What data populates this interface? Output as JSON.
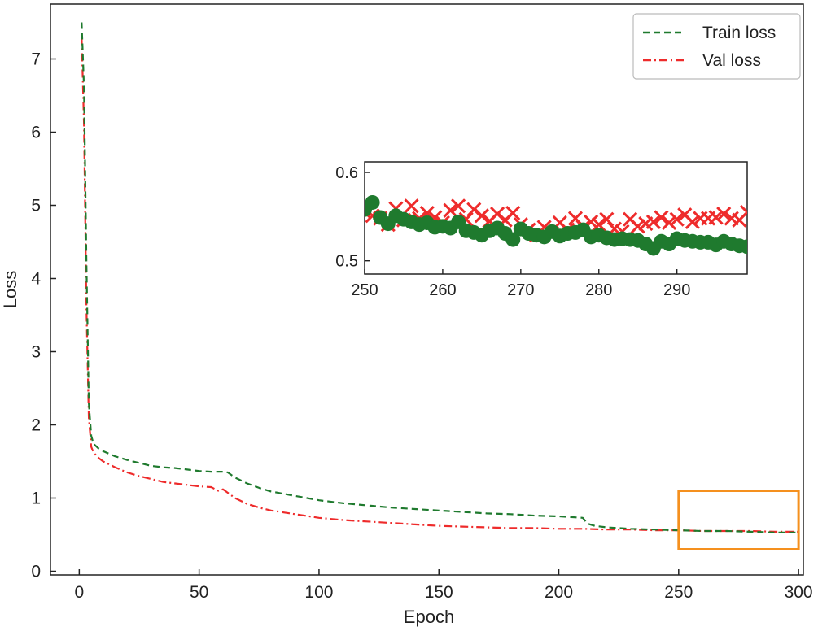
{
  "chart_data": {
    "type": "line",
    "title": "",
    "xlabel": "Epoch",
    "ylabel": "Loss",
    "xlim": [
      -12,
      302
    ],
    "ylim": [
      -0.05,
      7.75
    ],
    "xticks": [
      0,
      50,
      100,
      150,
      200,
      250,
      300
    ],
    "yticks": [
      0,
      1,
      2,
      3,
      4,
      5,
      6,
      7
    ],
    "grid": false,
    "legend_position": "top-right",
    "colors": {
      "train": "#1f7a2e",
      "val": "#ee2b2b",
      "highlight": "#f5901e",
      "axis": "#222222"
    },
    "series": [
      {
        "name": "Train loss",
        "style": "dashed",
        "x": [
          1,
          2,
          3,
          4,
          5,
          6,
          8,
          10,
          15,
          20,
          25,
          30,
          35,
          40,
          45,
          50,
          55,
          60,
          62,
          65,
          70,
          75,
          80,
          90,
          100,
          110,
          120,
          130,
          140,
          150,
          160,
          170,
          180,
          190,
          200,
          205,
          210,
          212,
          215,
          220,
          230,
          240,
          250,
          260,
          270,
          280,
          290,
          300
        ],
        "values": [
          7.5,
          6.6,
          4.2,
          2.3,
          1.85,
          1.74,
          1.68,
          1.64,
          1.57,
          1.52,
          1.48,
          1.44,
          1.42,
          1.41,
          1.39,
          1.37,
          1.36,
          1.36,
          1.35,
          1.28,
          1.2,
          1.14,
          1.09,
          1.03,
          0.97,
          0.93,
          0.9,
          0.87,
          0.85,
          0.83,
          0.81,
          0.79,
          0.78,
          0.76,
          0.75,
          0.74,
          0.73,
          0.65,
          0.62,
          0.6,
          0.58,
          0.57,
          0.56,
          0.55,
          0.55,
          0.54,
          0.53,
          0.53
        ]
      },
      {
        "name": "Val loss",
        "style": "dashdot",
        "x": [
          1,
          2,
          3,
          4,
          5,
          6,
          8,
          10,
          15,
          20,
          25,
          30,
          35,
          40,
          45,
          50,
          55,
          58,
          60,
          65,
          70,
          75,
          80,
          90,
          100,
          110,
          120,
          130,
          140,
          150,
          160,
          170,
          180,
          190,
          200,
          210,
          220,
          230,
          240,
          250,
          260,
          270,
          280,
          290,
          300
        ],
        "values": [
          7.3,
          6.1,
          3.6,
          2.1,
          1.7,
          1.62,
          1.55,
          1.5,
          1.42,
          1.35,
          1.3,
          1.26,
          1.22,
          1.2,
          1.18,
          1.16,
          1.15,
          1.1,
          1.12,
          1.0,
          0.92,
          0.87,
          0.83,
          0.78,
          0.73,
          0.7,
          0.68,
          0.66,
          0.64,
          0.62,
          0.61,
          0.6,
          0.59,
          0.59,
          0.58,
          0.58,
          0.57,
          0.57,
          0.56,
          0.56,
          0.55,
          0.55,
          0.55,
          0.54,
          0.54
        ]
      }
    ],
    "highlight_box": {
      "x_range": [
        250,
        300
      ],
      "y_range": [
        0.3,
        1.1
      ]
    },
    "inset": {
      "xlim": [
        250,
        299
      ],
      "ylim": [
        0.485,
        0.612
      ],
      "xticks": [
        250,
        260,
        270,
        280,
        290
      ],
      "yticks": [
        0.5,
        0.6
      ],
      "ytick_labels": [
        "0.5",
        "0.6"
      ],
      "series": [
        {
          "name": "Train loss",
          "marker": "circle",
          "x": [
            250,
            251,
            252,
            253,
            254,
            255,
            256,
            257,
            258,
            259,
            260,
            261,
            262,
            263,
            264,
            265,
            266,
            267,
            268,
            269,
            270,
            271,
            272,
            273,
            274,
            275,
            276,
            277,
            278,
            279,
            280,
            281,
            282,
            283,
            284,
            285,
            286,
            287,
            288,
            289,
            290,
            291,
            292,
            293,
            294,
            295,
            296,
            297,
            298,
            299
          ],
          "values": [
            0.558,
            0.566,
            0.549,
            0.542,
            0.551,
            0.547,
            0.544,
            0.541,
            0.543,
            0.538,
            0.539,
            0.537,
            0.544,
            0.534,
            0.532,
            0.529,
            0.534,
            0.537,
            0.531,
            0.524,
            0.536,
            0.531,
            0.529,
            0.527,
            0.533,
            0.528,
            0.531,
            0.532,
            0.535,
            0.527,
            0.529,
            0.526,
            0.524,
            0.525,
            0.524,
            0.523,
            0.519,
            0.514,
            0.522,
            0.519,
            0.525,
            0.523,
            0.522,
            0.521,
            0.521,
            0.518,
            0.522,
            0.519,
            0.517,
            0.516
          ]
        },
        {
          "name": "Val loss",
          "marker": "x",
          "x": [
            250,
            251,
            252,
            253,
            254,
            255,
            256,
            257,
            258,
            259,
            260,
            261,
            262,
            263,
            264,
            265,
            266,
            267,
            268,
            269,
            270,
            271,
            272,
            273,
            274,
            275,
            276,
            277,
            278,
            279,
            280,
            281,
            282,
            283,
            284,
            285,
            286,
            287,
            288,
            289,
            290,
            291,
            292,
            293,
            294,
            295,
            296,
            297,
            298,
            299
          ],
          "values": [
            0.555,
            0.551,
            0.548,
            0.541,
            0.559,
            0.546,
            0.562,
            0.548,
            0.554,
            0.549,
            0.543,
            0.557,
            0.562,
            0.547,
            0.558,
            0.551,
            0.545,
            0.553,
            0.546,
            0.554,
            0.541,
            0.535,
            0.529,
            0.538,
            0.531,
            0.543,
            0.535,
            0.548,
            0.538,
            0.544,
            0.541,
            0.547,
            0.536,
            0.533,
            0.547,
            0.539,
            0.542,
            0.544,
            0.549,
            0.543,
            0.547,
            0.552,
            0.544,
            0.548,
            0.548,
            0.549,
            0.553,
            0.548,
            0.546,
            0.555
          ]
        }
      ]
    }
  }
}
